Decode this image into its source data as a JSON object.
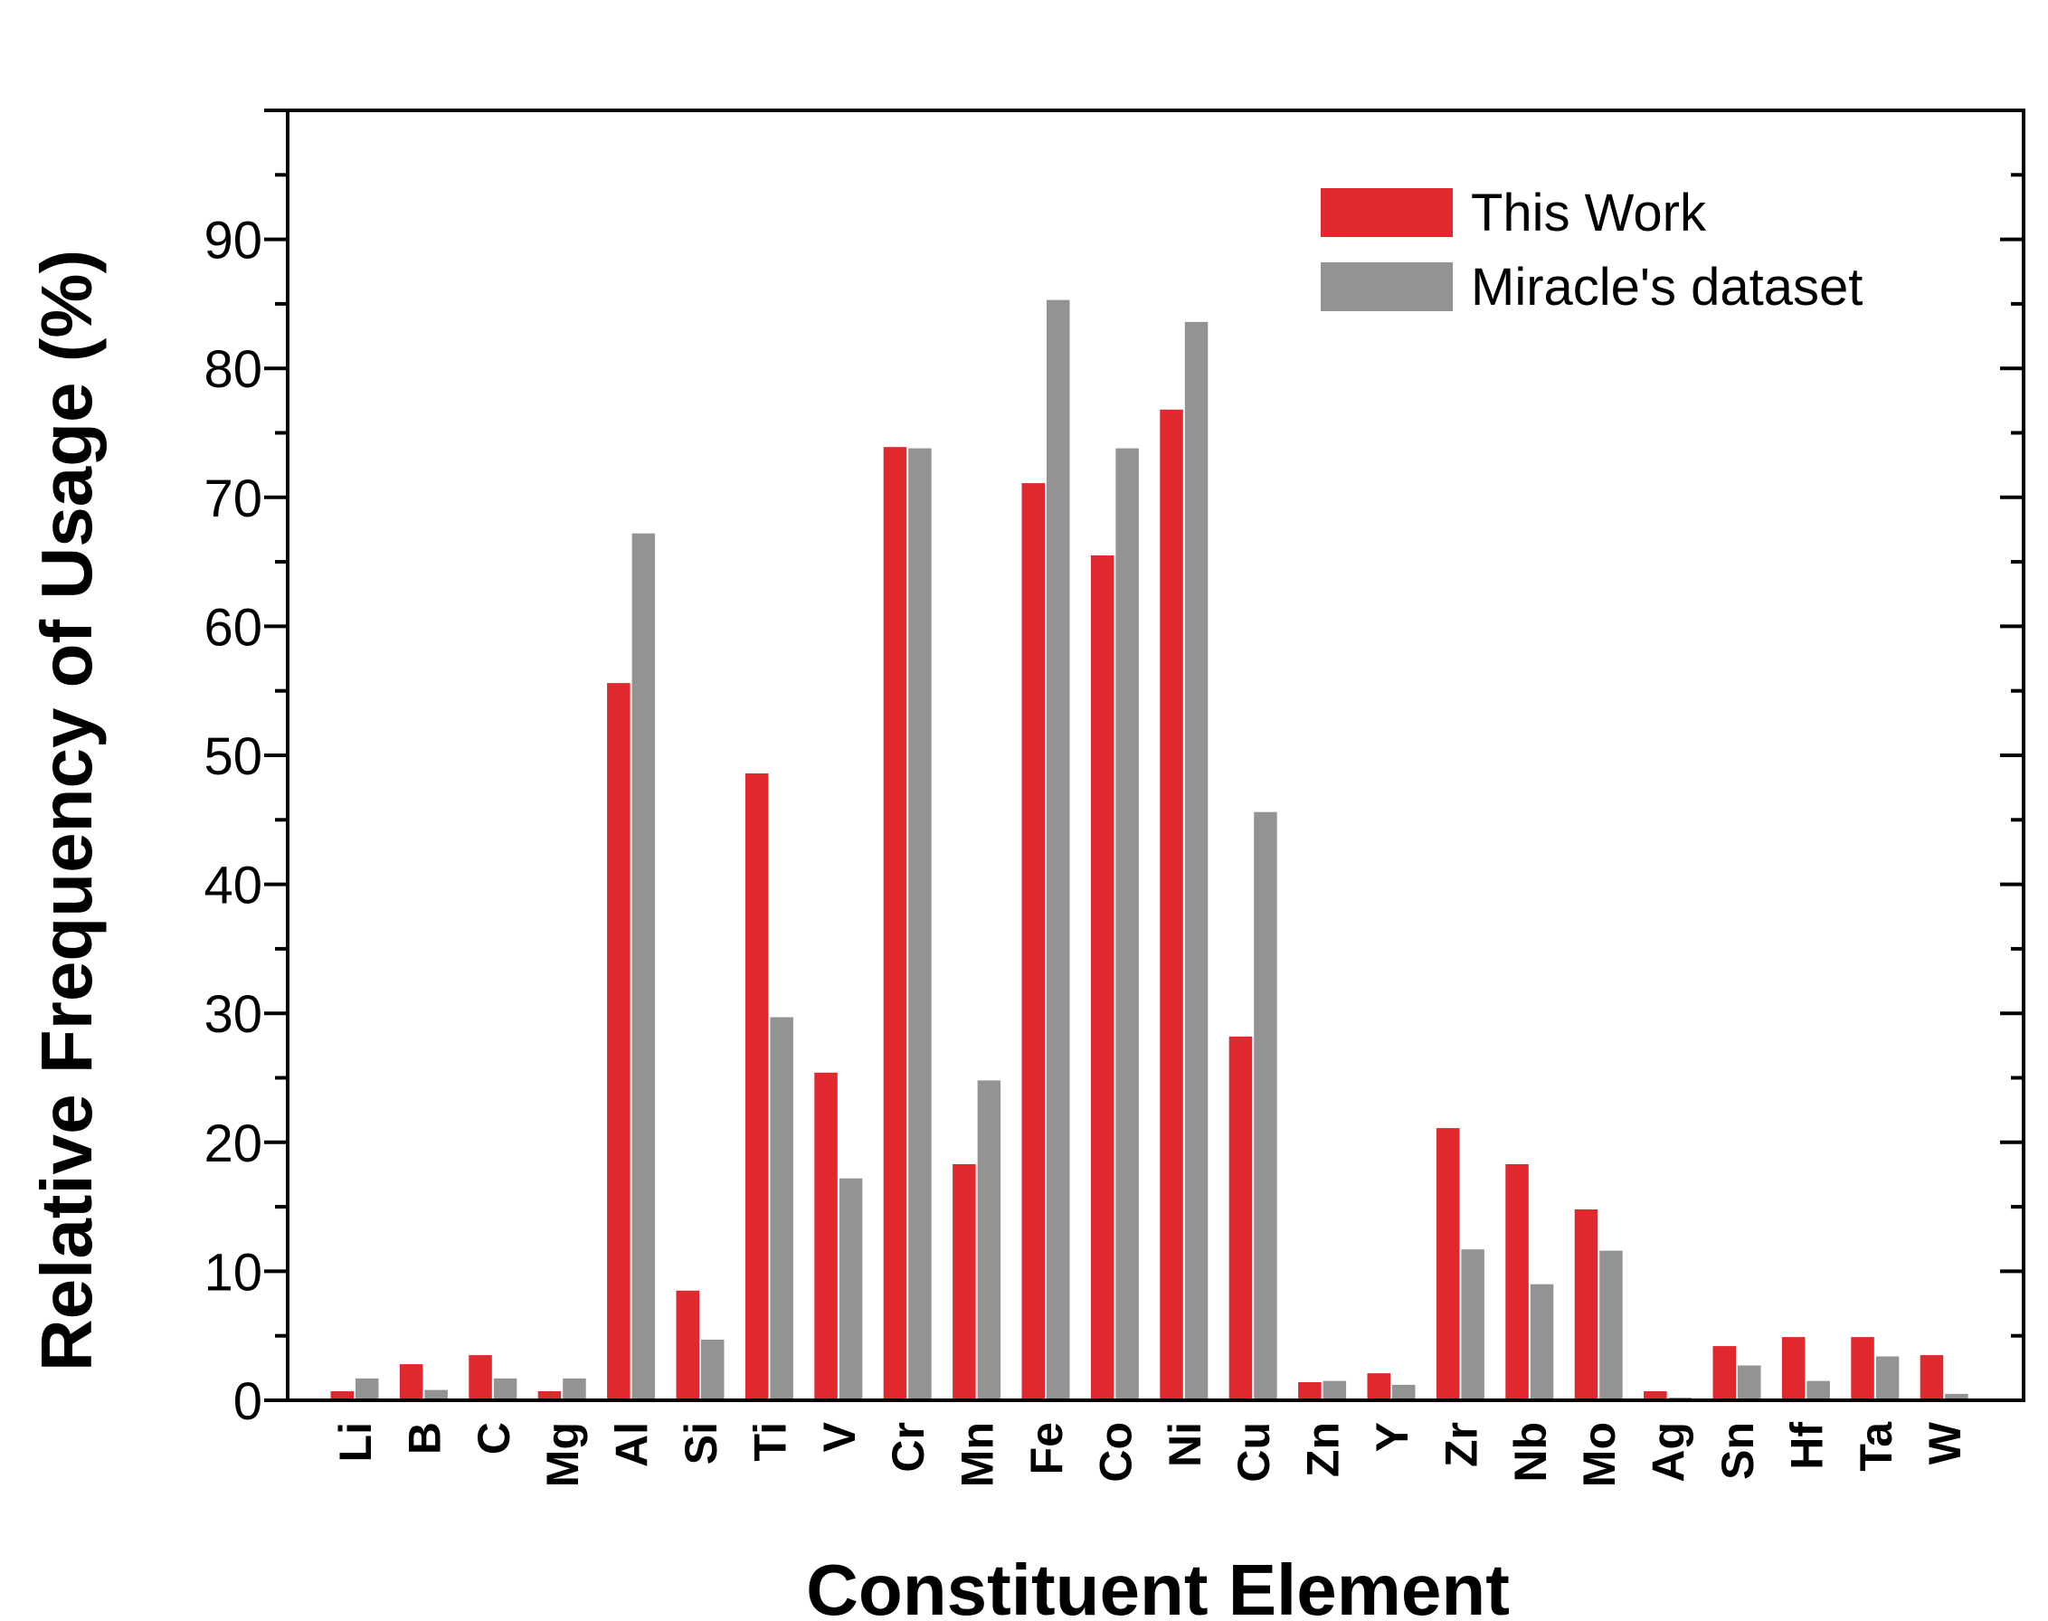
{
  "chart_data": {
    "type": "bar",
    "title": "",
    "xlabel": "Constituent Element",
    "ylabel": "Relative Frequency of Usage (%)",
    "ylim": [
      0,
      100
    ],
    "yticks": [
      0,
      10,
      20,
      30,
      40,
      50,
      60,
      70,
      80,
      90
    ],
    "grid": false,
    "legend_position": "top-right",
    "categories": [
      "Li",
      "B",
      "C",
      "Mg",
      "Al",
      "Si",
      "Ti",
      "V",
      "Cr",
      "Mn",
      "Fe",
      "Co",
      "Ni",
      "Cu",
      "Zn",
      "Y",
      "Zr",
      "Nb",
      "Mo",
      "Ag",
      "Sn",
      "Hf",
      "Ta",
      "W"
    ],
    "series": [
      {
        "name": "This Work",
        "color": "#e0282e",
        "values": [
          0.7,
          2.8,
          3.5,
          0.7,
          55.6,
          8.5,
          48.6,
          25.4,
          73.9,
          18.3,
          71.1,
          65.5,
          76.8,
          28.2,
          1.4,
          2.1,
          21.1,
          18.3,
          14.8,
          0.7,
          4.2,
          4.9,
          4.9,
          3.5
        ]
      },
      {
        "name": "Miracle's dataset",
        "color": "#939393",
        "values": [
          1.7,
          0.8,
          1.7,
          1.7,
          67.2,
          4.7,
          29.7,
          17.2,
          73.8,
          24.8,
          85.3,
          73.8,
          83.6,
          45.6,
          1.5,
          1.2,
          11.7,
          9.0,
          11.6,
          0.2,
          2.7,
          1.5,
          3.4,
          0.5
        ]
      }
    ]
  }
}
